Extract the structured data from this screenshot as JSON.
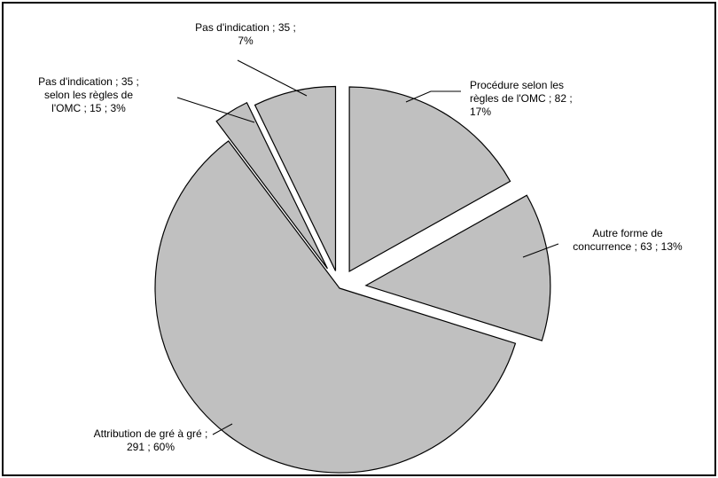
{
  "chart_data": {
    "type": "pie",
    "title": "",
    "exploded": true,
    "slices": [
      {
        "label_lines": [
          "Procédure selon les",
          "règles de l'OMC ; 82 ;",
          "17%"
        ],
        "value": 82,
        "percent": 17
      },
      {
        "label_lines": [
          "Autre forme de",
          "concurrence ; 63 ; 13%"
        ],
        "value": 63,
        "percent": 13
      },
      {
        "label_lines": [
          "Attribution de gré à gré ;",
          "291 ; 60%"
        ],
        "value": 291,
        "percent": 60
      },
      {
        "label_lines": [
          "Pas d'indication ; 35 ;",
          "selon les règles de",
          "l'OMC ; 15 ; 3%"
        ],
        "value": 15,
        "percent": 3
      },
      {
        "label_lines": [
          "Pas d'indication ; 35 ;",
          "7%"
        ],
        "value": 35,
        "percent": 7
      }
    ],
    "colors": {
      "slice_fill": "#c0c0c0",
      "slice_stroke": "#000000",
      "border": "#000000"
    }
  }
}
